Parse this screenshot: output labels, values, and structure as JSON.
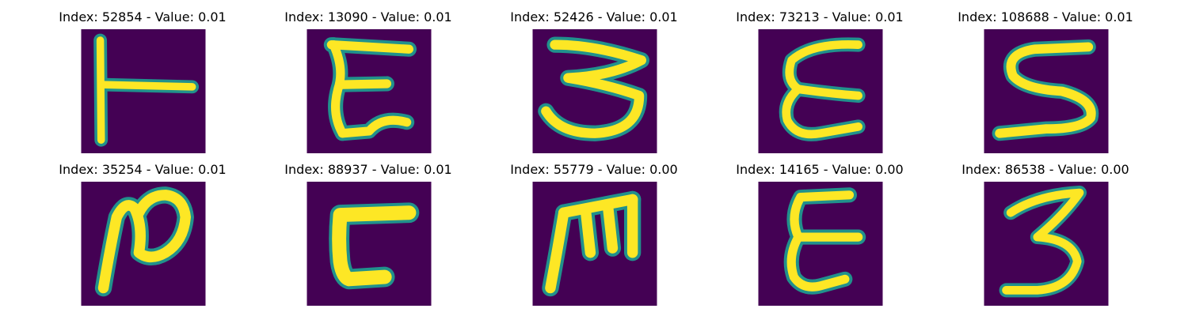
{
  "colors": {
    "background": "#440154",
    "stroke_core": "#fde725",
    "stroke_edge": "#21918c"
  },
  "panels": [
    {
      "title": "Index: 52854 - Value: 0.01",
      "glyph": "T-rotated-icon"
    },
    {
      "title": "Index: 13090 - Value: 0.01",
      "glyph": "E-icon"
    },
    {
      "title": "Index: 52426 - Value: 0.01",
      "glyph": "3-icon"
    },
    {
      "title": "Index: 73213 - Value: 0.01",
      "glyph": "E-icon"
    },
    {
      "title": "Index: 108688 - Value: 0.01",
      "glyph": "S-icon"
    },
    {
      "title": "Index: 35254 - Value: 0.01",
      "glyph": "N-icon"
    },
    {
      "title": "Index: 88937 - Value: 0.01",
      "glyph": "L-rotated-icon"
    },
    {
      "title": "Index: 55779 - Value: 0.00",
      "glyph": "M-icon"
    },
    {
      "title": "Index: 14165 - Value: 0.00",
      "glyph": "E-icon"
    },
    {
      "title": "Index: 86538 - Value: 0.00",
      "glyph": "3-icon"
    }
  ]
}
